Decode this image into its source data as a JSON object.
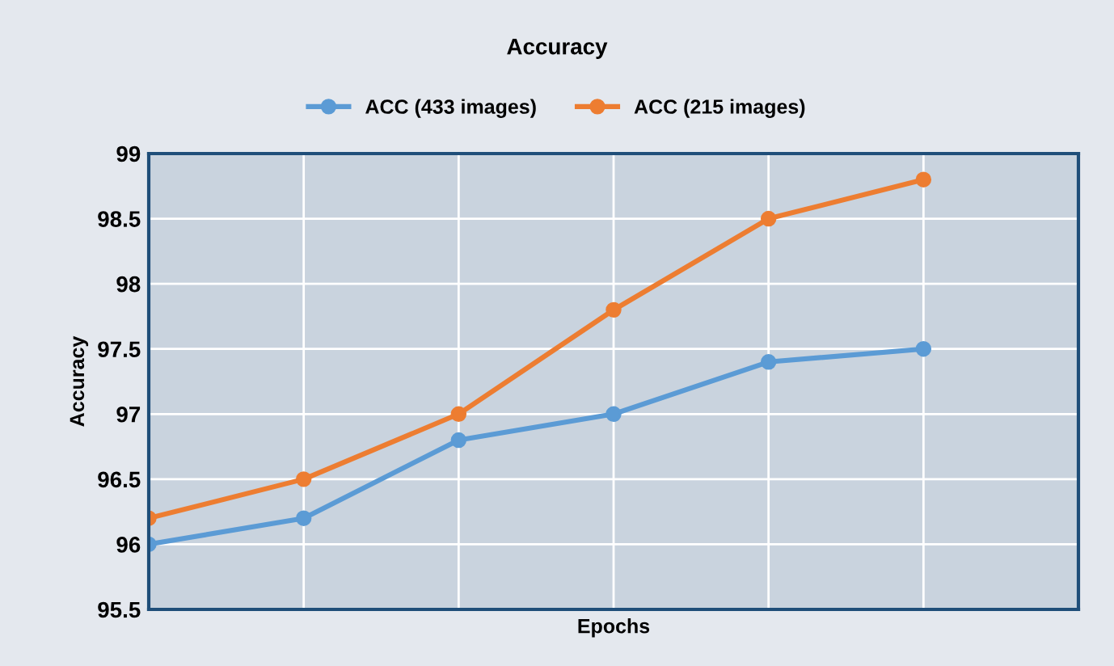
{
  "chart_data": {
    "type": "line",
    "title": "Accuracy",
    "xlabel": "Epochs",
    "ylabel": "Accuracy",
    "categories": [
      null,
      null,
      null,
      null,
      null,
      null
    ],
    "series": [
      {
        "name": "ACC (433 images)",
        "color": "#5b9bd5",
        "values": [
          96.0,
          96.2,
          96.8,
          97.0,
          97.4,
          97.5
        ]
      },
      {
        "name": "ACC (215 images)",
        "color": "#ed7d31",
        "values": [
          96.2,
          96.5,
          97.0,
          97.8,
          98.5,
          98.8
        ]
      }
    ],
    "ylim": [
      95.5,
      99
    ],
    "yticks": [
      95.5,
      96,
      96.5,
      97,
      97.5,
      98,
      98.5,
      99
    ],
    "grid": true,
    "legend": "top",
    "marker": "circle",
    "line_style": "solid",
    "tick_labels": "y"
  }
}
